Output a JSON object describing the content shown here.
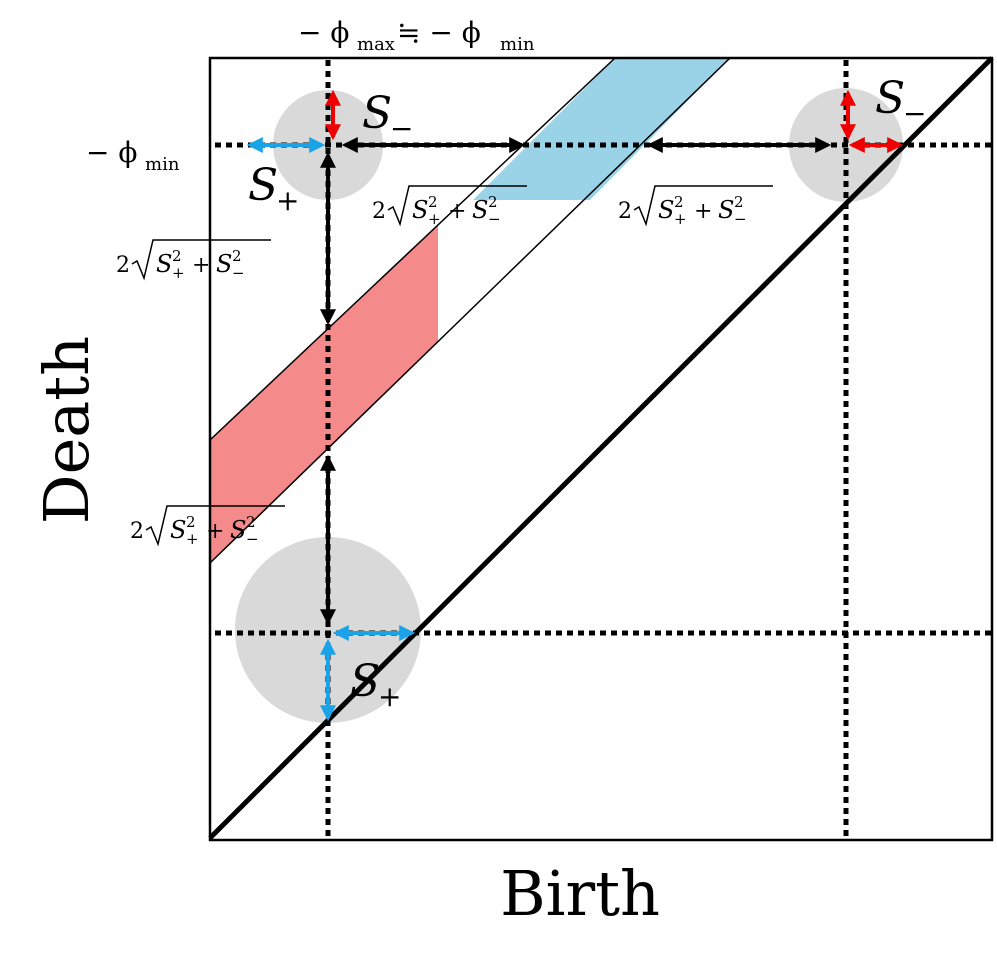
{
  "axes": {
    "x_label": "Birth",
    "y_label": "Death"
  },
  "top_label": {
    "a": "− ϕ",
    "sub1": "max",
    "b": "≒ − ϕ",
    "sub2": "min"
  },
  "side_label": {
    "a": "− ϕ",
    "sub": "min"
  },
  "s_minus": [
    {
      "base": "S",
      "sub": "−"
    },
    {
      "base": "S",
      "sub": "−"
    }
  ],
  "s_plus": [
    {
      "base": "S",
      "sub": "+"
    },
    {
      "base": "S",
      "sub": "+"
    }
  ],
  "distances": [
    {
      "coef": "2",
      "t1": "S",
      "t1_sup": "2",
      "t1_sub": "+",
      "op": "+",
      "t2": "S",
      "t2_sup": "2",
      "t2_sub": "−"
    },
    {
      "coef": "2",
      "t1": "S",
      "t1_sup": "2",
      "t1_sub": "+",
      "op": "+",
      "t2": "S",
      "t2_sup": "2",
      "t2_sub": "−"
    },
    {
      "coef": "2",
      "t1": "S",
      "t1_sup": "2",
      "t1_sub": "+",
      "op": "+",
      "t2": "S",
      "t2_sup": "2",
      "t2_sub": "−"
    },
    {
      "coef": "2",
      "t1": "S",
      "t1_sup": "2",
      "t1_sub": "+",
      "op": "+",
      "t2": "S",
      "t2_sup": "2",
      "t2_sub": "−"
    }
  ]
}
